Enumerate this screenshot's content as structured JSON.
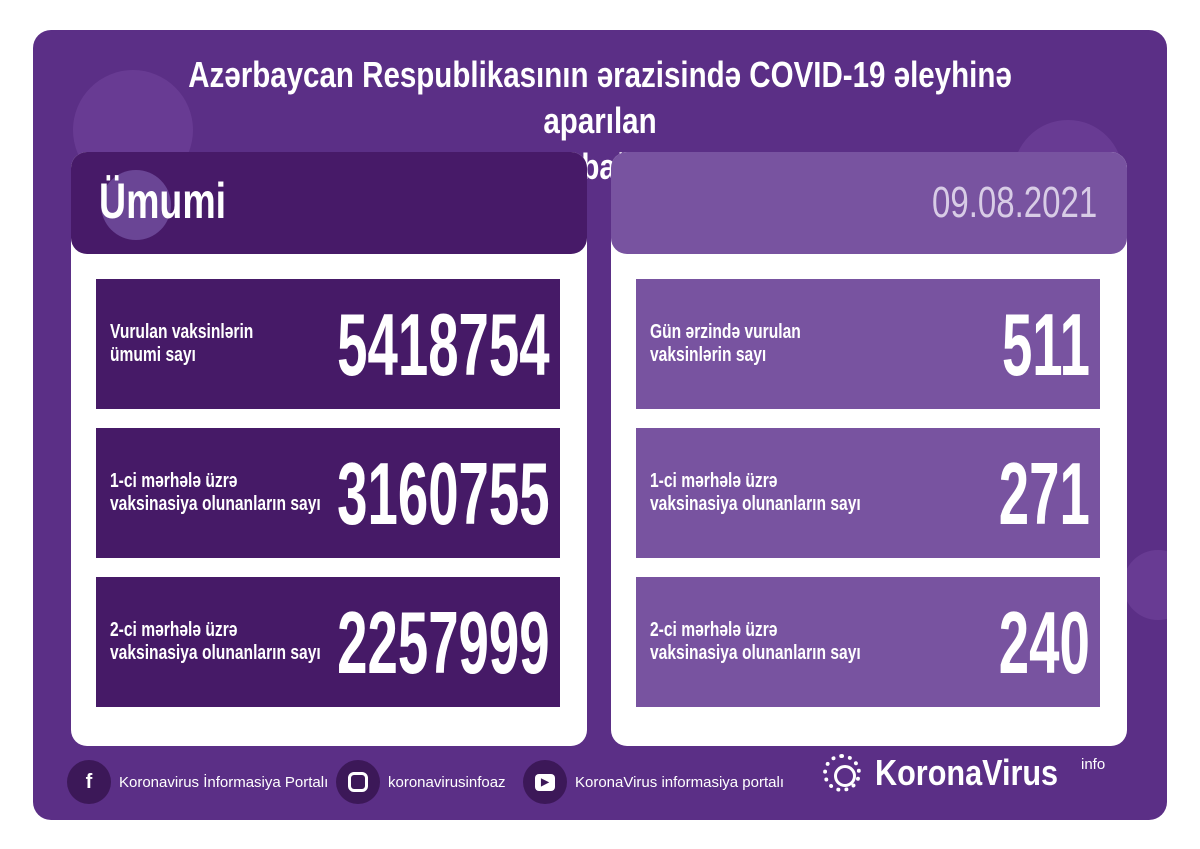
{
  "title": {
    "line1": "Azərbaycan Respublikasının ərazisində COVID-19 əleyhinə aparılan",
    "line2": "vaksinasiya ilə bağlı son vəziyyət"
  },
  "left": {
    "heading": "Ümumi",
    "items": [
      {
        "label1": "Vurulan vaksinlərin",
        "label2": "ümumi sayı",
        "value": "5418754"
      },
      {
        "label1": "1-ci mərhələ üzrə",
        "label2": "vaksinasiya olunanların sayı",
        "value": "3160755"
      },
      {
        "label1": "2-ci mərhələ üzrə",
        "label2": "vaksinasiya olunanların sayı",
        "value": "2257999"
      }
    ]
  },
  "right": {
    "date": "09.08.2021",
    "items": [
      {
        "label1": "Gün ərzində vurulan",
        "label2": "vaksinlərin sayı",
        "value": "511"
      },
      {
        "label1": "1-ci mərhələ üzrə",
        "label2": "vaksinasiya olunanların sayı",
        "value": "271"
      },
      {
        "label1": "2-ci mərhələ üzrə",
        "label2": "vaksinasiya olunanların sayı",
        "value": "240"
      }
    ]
  },
  "footer": {
    "facebook": "Koronavirus İnformasiya Portalı",
    "instagram": "koronavirusinfoaz",
    "youtube": "KoronaVirus informasiya portalı",
    "brand": "KoronaVirus",
    "brand_sup": "info"
  },
  "colors": {
    "background": "#5b2f86",
    "dark_panel": "#461a67",
    "light_panel": "#7853a0"
  }
}
